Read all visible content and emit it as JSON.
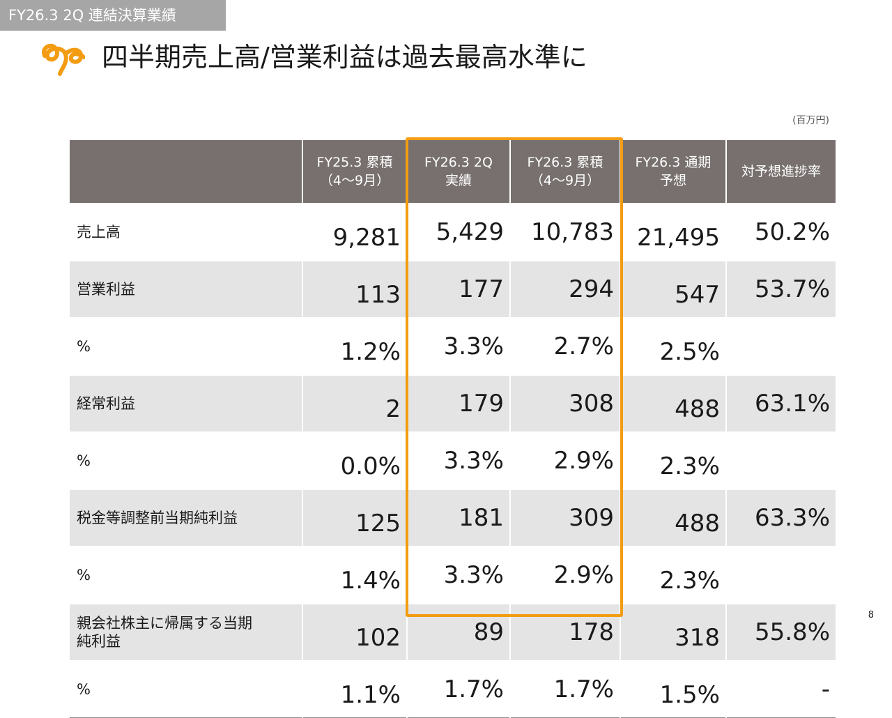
{
  "header": {
    "section_tag": "FY26.3 2Q 連結決算業績",
    "title": "四半期売上高/営業利益は過去最高水準に",
    "unit_note": "(百万円)"
  },
  "colors": {
    "accent": "#f39c12",
    "header_bg": "#77706e",
    "row_shade": "#e4e4e4",
    "tag_bg": "#a6a6a6"
  },
  "icons": {
    "logo": "orange-swirl-logo-icon"
  },
  "table": {
    "columns": [
      {
        "line1": "",
        "line2": ""
      },
      {
        "line1": "FY25.3 累積",
        "line2": "（4～9月）"
      },
      {
        "line1": "FY26.3  2Q",
        "line2": "実績"
      },
      {
        "line1": "FY26.3  累積",
        "line2": "（4～9月）"
      },
      {
        "line1": "FY26.3 通期",
        "line2": "予想"
      },
      {
        "line1": "対予想進捗率",
        "line2": ""
      }
    ],
    "rows": [
      {
        "label": "売上高",
        "values": [
          "9,281",
          "5,429",
          "10,783",
          "21,495",
          "50.2%"
        ]
      },
      {
        "label": "営業利益",
        "values": [
          "113",
          "177",
          "294",
          "547",
          "53.7%"
        ]
      },
      {
        "label": "%",
        "values": [
          "1.2%",
          "3.3%",
          "2.7%",
          "2.5%",
          ""
        ]
      },
      {
        "label": "経常利益",
        "values": [
          "2",
          "179",
          "308",
          "488",
          "63.1%"
        ]
      },
      {
        "label": "%",
        "values": [
          "0.0%",
          "3.3%",
          "2.9%",
          "2.3%",
          ""
        ]
      },
      {
        "label": "税金等調整前当期純利益",
        "values": [
          "125",
          "181",
          "309",
          "488",
          "63.3%"
        ]
      },
      {
        "label": "%",
        "values": [
          "1.4%",
          "3.3%",
          "2.9%",
          "2.3%",
          ""
        ]
      },
      {
        "label": "親会社株主に帰属する当期",
        "label_line2": "純利益",
        "values": [
          "102",
          "89",
          "178",
          "318",
          "55.8%"
        ]
      },
      {
        "label": "%",
        "values": [
          "1.1%",
          "1.7%",
          "1.7%",
          "1.5%",
          "-"
        ]
      }
    ]
  },
  "footer": {
    "page_number": "8"
  }
}
